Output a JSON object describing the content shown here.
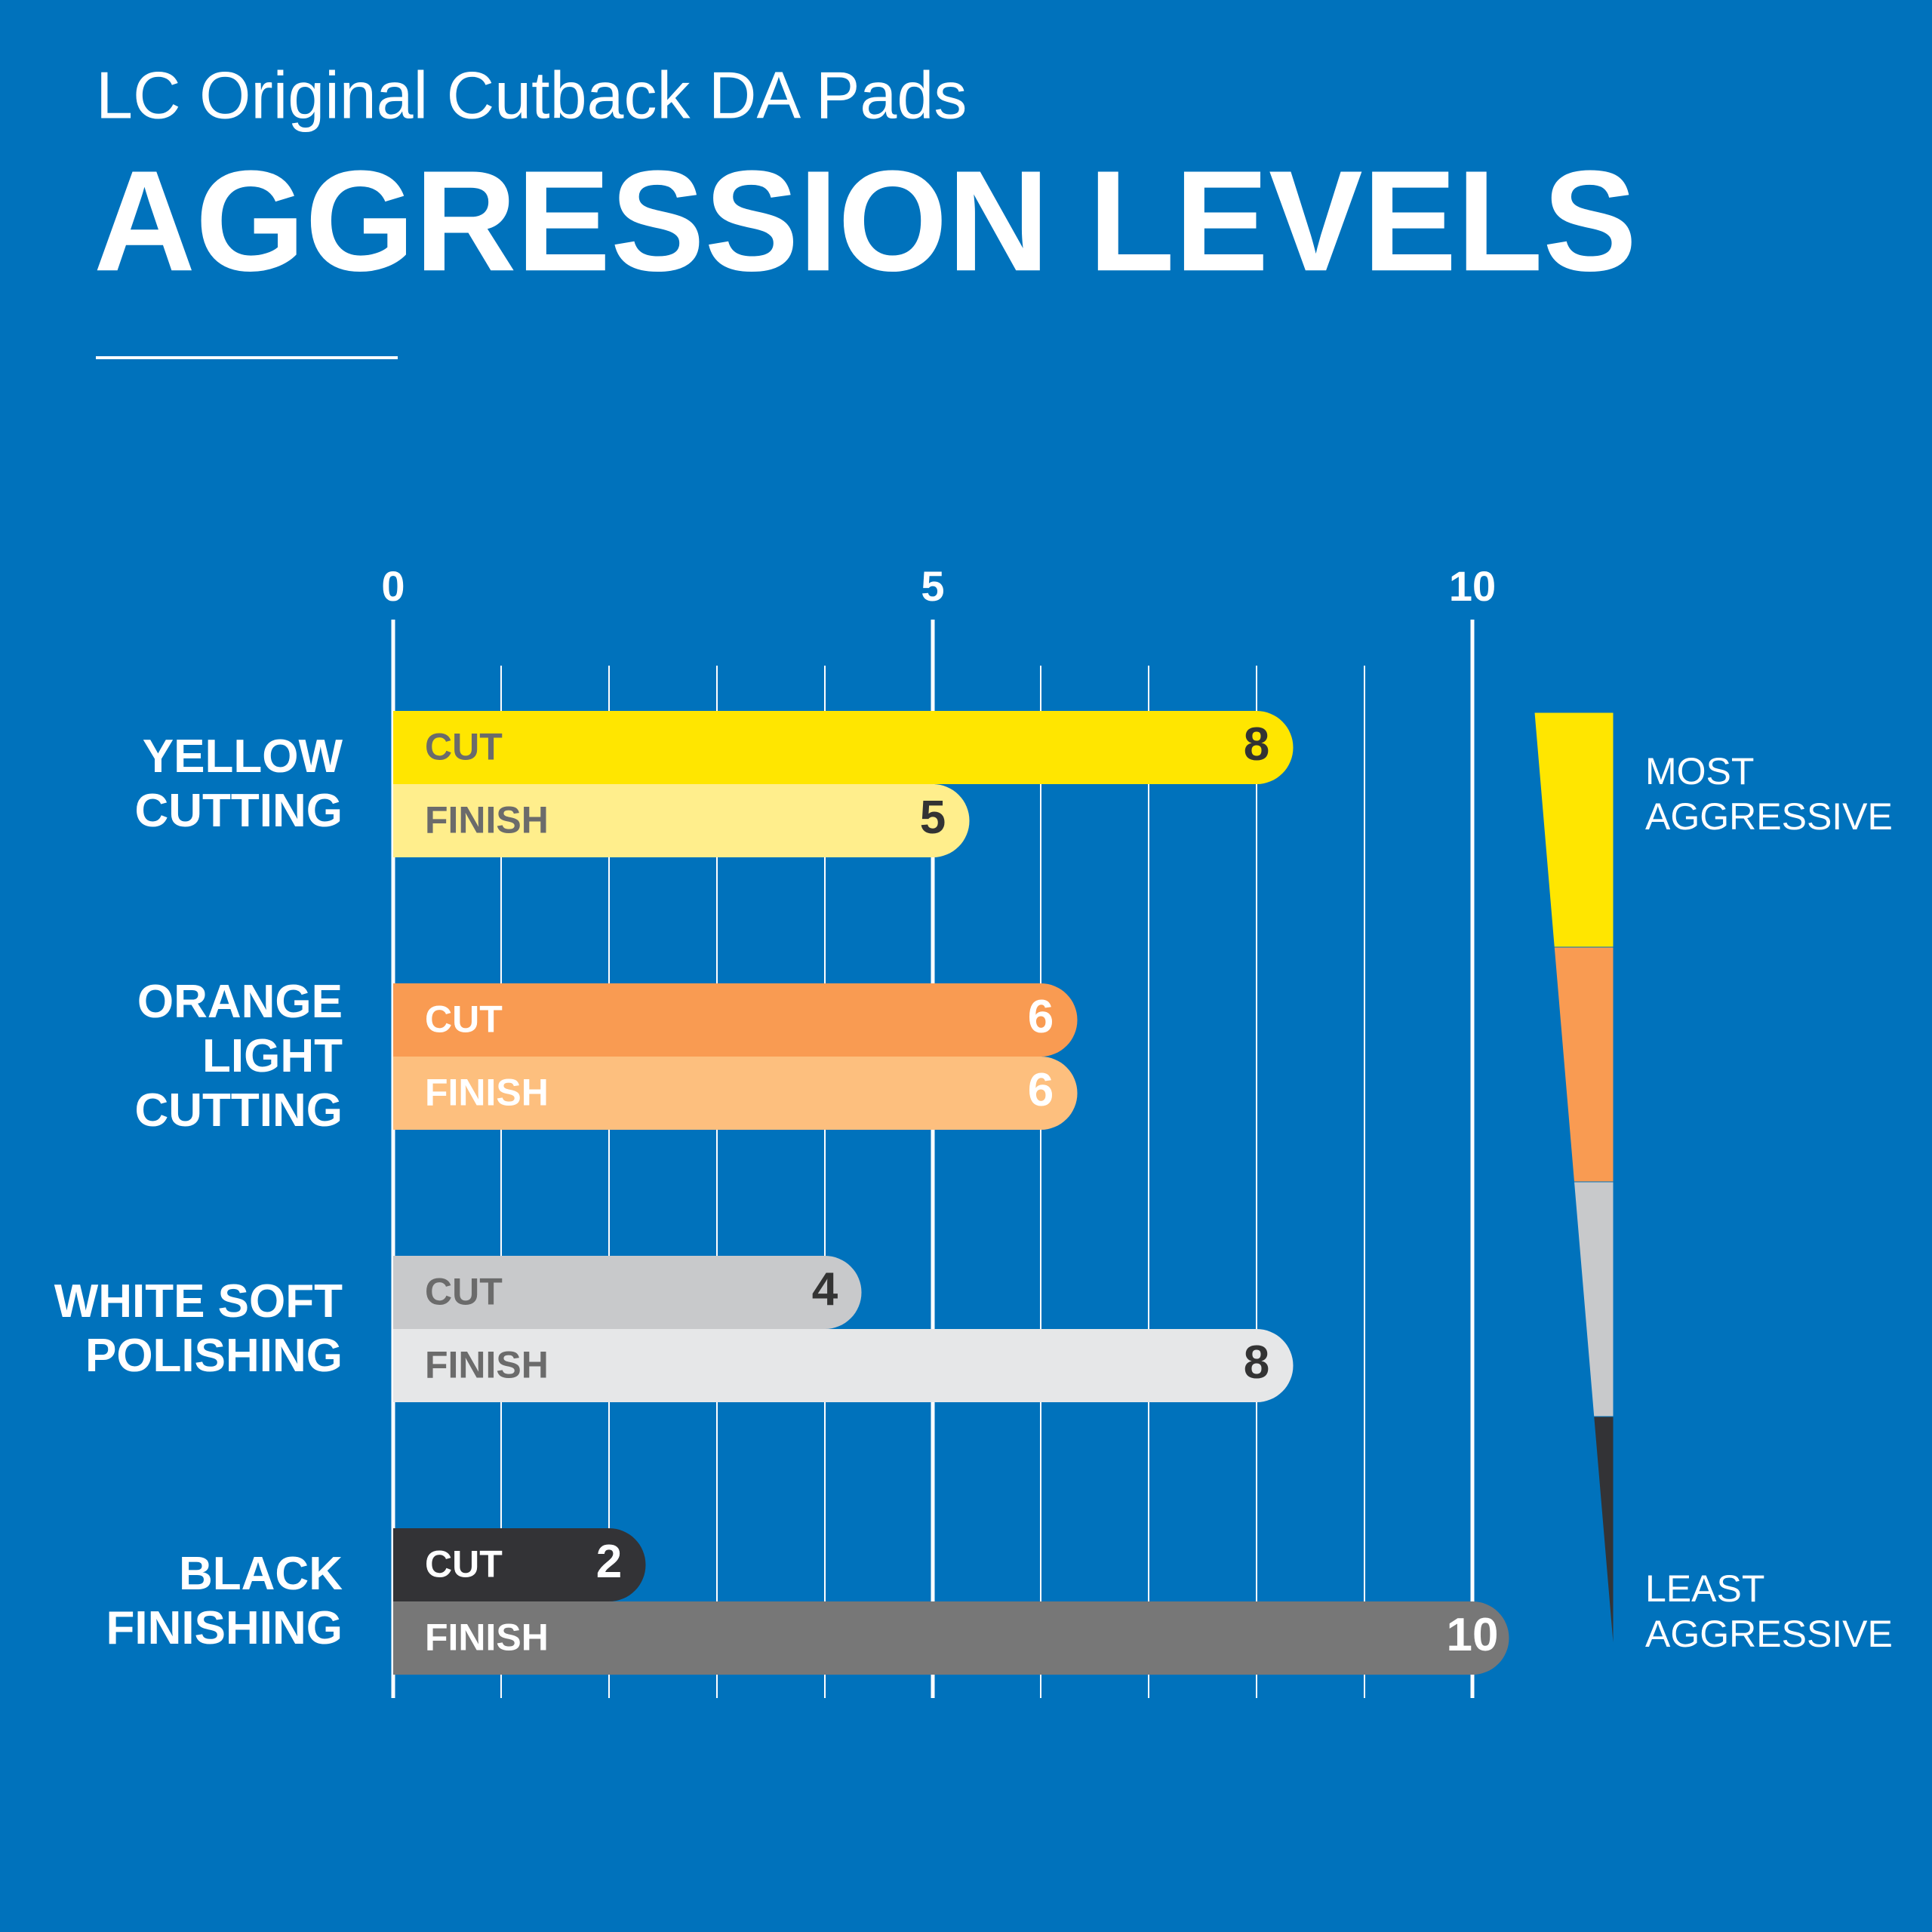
{
  "chart_data": {
    "type": "bar",
    "subtitle": "LC Original Cutback DA Pads",
    "title": "AGGRESSION LEVELS",
    "categories": [
      "YELLOW CUTTING",
      "ORANGE LIGHT CUTTING",
      "WHITE SOFT POLISHING",
      "BLACK FINISHING"
    ],
    "series": [
      {
        "name": "CUT",
        "values": [
          8,
          6,
          4,
          2
        ],
        "colors": [
          "#FFE600",
          "#F99B52",
          "#C8C9CB",
          "#333336"
        ],
        "label_colors": [
          "#6b6b6b",
          "#ffffff",
          "#6b6b6b",
          "#ffffff"
        ],
        "value_colors": [
          "#333333",
          "#ffffff",
          "#333333",
          "#ffffff"
        ]
      },
      {
        "name": "FINISH",
        "values": [
          5,
          6,
          8,
          10
        ],
        "colors": [
          "#FFEE8C",
          "#FDBF7E",
          "#E6E7E8",
          "#777777"
        ],
        "label_colors": [
          "#6b6b6b",
          "#ffffff",
          "#6b6b6b",
          "#ffffff"
        ],
        "value_colors": [
          "#333333",
          "#ffffff",
          "#333333",
          "#ffffff"
        ]
      }
    ],
    "xlim": [
      0,
      10
    ],
    "xticks": [
      0,
      5,
      10
    ],
    "minor_xticks": [
      1,
      2,
      3,
      4,
      6,
      7,
      8,
      9
    ],
    "grid": true,
    "scale_legend": {
      "top": "MOST AGGRESSIVE",
      "bottom": "LEAST AGGRESSIVE",
      "colors": [
        "#FFE600",
        "#F99B52",
        "#C8C9CB",
        "#333336"
      ]
    }
  }
}
